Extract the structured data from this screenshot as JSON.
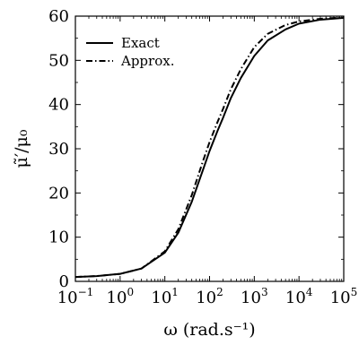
{
  "chart_data": {
    "type": "line",
    "xlabel": "ω (rad.s⁻¹)",
    "ylabel": "μ̃′/μ₀",
    "xscale": "log",
    "xlim": [
      0.1,
      100000
    ],
    "ylim": [
      0,
      60
    ],
    "x_ticks": [
      0.1,
      1,
      10,
      100,
      1000,
      10000,
      100000
    ],
    "x_tick_labels": [
      {
        "base": "10",
        "exp": "−1"
      },
      {
        "base": "10",
        "exp": "0"
      },
      {
        "base": "10",
        "exp": "1"
      },
      {
        "base": "10",
        "exp": "2"
      },
      {
        "base": "10",
        "exp": "3"
      },
      {
        "base": "10",
        "exp": "4"
      },
      {
        "base": "10",
        "exp": "5"
      }
    ],
    "y_ticks": [
      0,
      10,
      20,
      30,
      40,
      50,
      60
    ],
    "y_tick_labels": [
      "0",
      "10",
      "20",
      "30",
      "40",
      "50",
      "60"
    ],
    "grid": false,
    "legend_position": "top-left",
    "series": [
      {
        "name": "Exact",
        "style": "solid",
        "color": "#000000",
        "x": [
          0.1,
          0.3,
          1,
          3,
          10,
          20,
          40,
          70,
          100,
          150,
          200,
          300,
          500,
          1000,
          2000,
          5000,
          10000,
          30000,
          100000
        ],
        "y": [
          1.0,
          1.2,
          1.7,
          2.9,
          6.5,
          11.0,
          18.0,
          25.0,
          29.5,
          34.0,
          37.0,
          41.5,
          46.0,
          51.0,
          54.5,
          57.0,
          58.3,
          59.2,
          59.6
        ]
      },
      {
        "name": "Approx.",
        "style": "dash-dot",
        "color": "#000000",
        "x": [
          0.1,
          0.3,
          1,
          3,
          10,
          20,
          40,
          70,
          100,
          150,
          200,
          300,
          500,
          1000,
          2000,
          5000,
          10000,
          30000,
          100000
        ],
        "y": [
          1.0,
          1.2,
          1.7,
          2.9,
          6.8,
          11.8,
          19.5,
          27.0,
          31.5,
          36.0,
          39.0,
          43.5,
          48.0,
          53.0,
          56.0,
          58.0,
          58.8,
          59.4,
          59.7
        ]
      }
    ]
  }
}
